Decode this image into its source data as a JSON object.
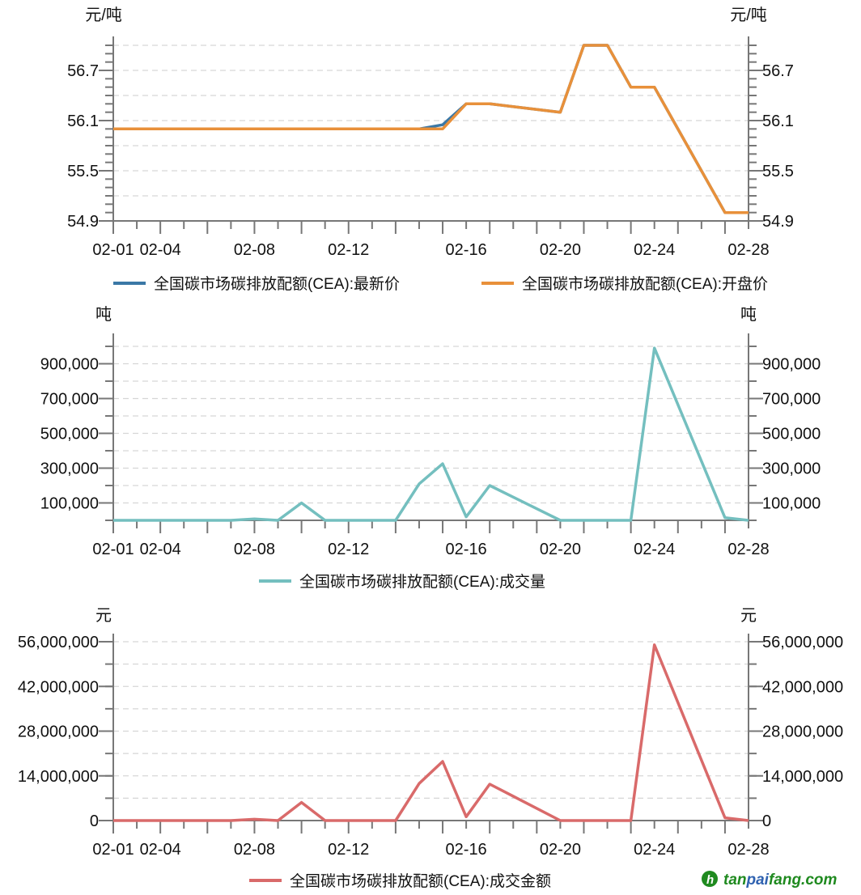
{
  "x_tick_labels": [
    {
      "index": 0,
      "label": "02-01"
    },
    {
      "index": 2,
      "label": "02-04"
    },
    {
      "index": 6,
      "label": "02-08"
    },
    {
      "index": 10,
      "label": "02-12"
    },
    {
      "index": 15,
      "label": "02-16"
    },
    {
      "index": 19,
      "label": "02-20"
    },
    {
      "index": 23,
      "label": "02-24"
    },
    {
      "index": 27,
      "label": "02-28"
    }
  ],
  "chart_data": [
    {
      "type": "line",
      "unit_label": "元/吨",
      "ylim": [
        54.9,
        57.0
      ],
      "grid": true,
      "grid_step": 0.3,
      "minor_tick_step": 0.1,
      "y_ticks": [
        {
          "value": 56.7,
          "label": "56.7"
        },
        {
          "value": 56.1,
          "label": "56.1"
        },
        {
          "value": 55.5,
          "label": "55.5"
        },
        {
          "value": 54.9,
          "label": "54.9"
        }
      ],
      "legend_position": "bottom",
      "series": [
        {
          "name": "全国碳市场碳排放配额(CEA):最新价",
          "color": "#3b78a6",
          "values": [
            56.0,
            56.0,
            56.0,
            56.0,
            56.0,
            56.0,
            56.0,
            56.0,
            56.0,
            56.0,
            56.0,
            56.0,
            56.0,
            56.0,
            56.05,
            56.3,
            56.3,
            null,
            null,
            56.2,
            57.0,
            57.0,
            56.5,
            56.5,
            null,
            null,
            55.0,
            55.0
          ]
        },
        {
          "name": "全国碳市场碳排放配额(CEA):开盘价",
          "color": "#e8903a",
          "values": [
            56.0,
            56.0,
            56.0,
            56.0,
            56.0,
            56.0,
            56.0,
            56.0,
            56.0,
            56.0,
            56.0,
            56.0,
            56.0,
            56.0,
            56.0,
            56.3,
            56.3,
            null,
            null,
            56.2,
            57.0,
            57.0,
            56.5,
            56.5,
            null,
            null,
            55.0,
            55.0
          ]
        }
      ]
    },
    {
      "type": "line",
      "unit_label": "吨",
      "ylim": [
        0,
        1000000
      ],
      "grid": true,
      "grid_step": 100000,
      "y_ticks": [
        {
          "value": 900000,
          "label": "900,000"
        },
        {
          "value": 700000,
          "label": "700,000"
        },
        {
          "value": 500000,
          "label": "500,000"
        },
        {
          "value": 300000,
          "label": "300,000"
        },
        {
          "value": 100000,
          "label": "100,000"
        }
      ],
      "legend_position": "bottom",
      "series": [
        {
          "name": "全国碳市场碳排放配额(CEA):成交量",
          "color": "#74bfbf",
          "values": [
            0,
            0,
            0,
            0,
            0,
            0,
            8000,
            0,
            100000,
            0,
            0,
            0,
            0,
            210000,
            325000,
            20000,
            200000,
            null,
            null,
            0,
            0,
            0,
            0,
            990000,
            null,
            null,
            15000,
            0
          ]
        }
      ]
    },
    {
      "type": "line",
      "unit_label": "元",
      "ylim": [
        0,
        56000000
      ],
      "grid": true,
      "grid_step": 7000000,
      "y_ticks": [
        {
          "value": 56000000,
          "label": "56,000,000"
        },
        {
          "value": 42000000,
          "label": "42,000,000"
        },
        {
          "value": 28000000,
          "label": "28,000,000"
        },
        {
          "value": 14000000,
          "label": "14,000,000"
        },
        {
          "value": 0,
          "label": "0"
        }
      ],
      "legend_position": "bottom",
      "series": [
        {
          "name": "全国碳市场碳排放配额(CEA):成交金额",
          "color": "#d96a6a",
          "values": [
            0,
            0,
            0,
            0,
            0,
            0,
            400000,
            0,
            5670000,
            0,
            0,
            0,
            0,
            11600000,
            18500000,
            1200000,
            11400000,
            null,
            null,
            0,
            0,
            0,
            0,
            55000000,
            null,
            null,
            850000,
            0
          ]
        }
      ]
    }
  ],
  "watermark": {
    "text": "tanpaifang.com",
    "color": "#1f8a1f",
    "accent_color": "#2f62b0"
  }
}
